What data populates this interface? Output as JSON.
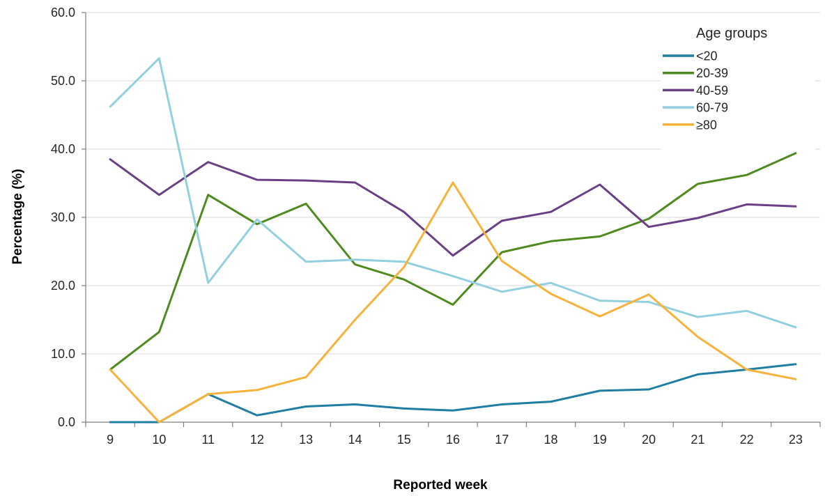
{
  "chart_data": {
    "type": "line",
    "x": [
      9,
      10,
      11,
      12,
      13,
      14,
      15,
      16,
      17,
      18,
      19,
      20,
      21,
      22,
      23
    ],
    "xlabel": "Reported week",
    "ylabel": "Percentage (%)",
    "ylim": [
      0,
      60
    ],
    "yticks": [
      "0.0",
      "10.0",
      "20.0",
      "30.0",
      "40.0",
      "50.0",
      "60.0"
    ],
    "grid": true,
    "legend_title": "Age groups",
    "legend_position": "top-right",
    "series": [
      {
        "name": "<20",
        "color": "#1f7ea1",
        "values": [
          0.0,
          0.0,
          4.1,
          1.0,
          2.3,
          2.6,
          2.0,
          1.7,
          2.6,
          3.0,
          4.6,
          4.8,
          7.0,
          7.7,
          8.5
        ]
      },
      {
        "name": "20-39",
        "color": "#4e8a1e",
        "values": [
          7.7,
          13.2,
          33.3,
          29.0,
          32.0,
          23.1,
          20.9,
          17.2,
          24.9,
          26.5,
          27.2,
          29.8,
          34.9,
          36.2,
          39.4
        ]
      },
      {
        "name": "40-59",
        "color": "#6b3f86",
        "values": [
          38.5,
          33.3,
          38.1,
          35.5,
          35.4,
          35.1,
          30.8,
          24.4,
          29.5,
          30.8,
          34.8,
          28.6,
          29.9,
          31.9,
          31.6
        ]
      },
      {
        "name": "60-79",
        "color": "#92d0e0",
        "values": [
          46.2,
          53.3,
          20.4,
          29.7,
          23.5,
          23.8,
          23.5,
          21.4,
          19.1,
          20.4,
          17.8,
          17.6,
          15.4,
          16.3,
          13.9
        ]
      },
      {
        "name": "≥80",
        "color": "#f7b23b",
        "values": [
          7.7,
          0.0,
          4.1,
          4.7,
          6.6,
          15.0,
          22.7,
          35.1,
          23.6,
          18.8,
          15.5,
          18.7,
          12.5,
          7.7,
          6.3
        ]
      }
    ]
  }
}
